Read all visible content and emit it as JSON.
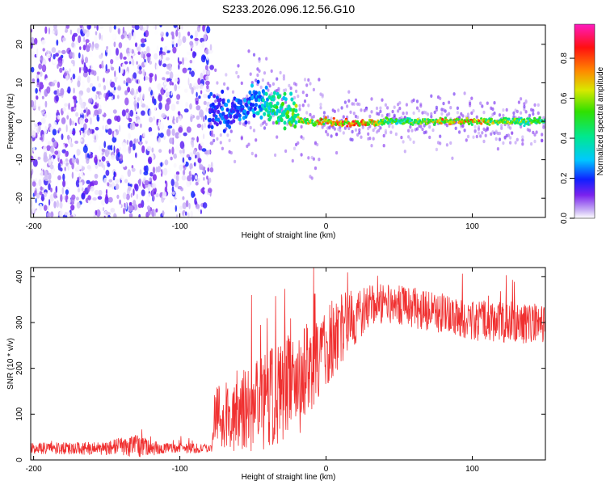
{
  "figure": {
    "title": "S233.2026.096.12.56.G10"
  },
  "chart_data": [
    {
      "type": "heatmap",
      "xlabel": "Height of straight line (km)",
      "ylabel": "Frequency (Hz)",
      "xlim": [
        -202,
        150
      ],
      "ylim": [
        -25,
        25
      ],
      "xticks": [
        -200,
        -100,
        0,
        100
      ],
      "yticks": [
        -20,
        -10,
        0,
        10,
        20
      ],
      "colorbar": {
        "label": "Normalized spectral amplitude",
        "range": [
          0,
          0.97
        ],
        "ticks": [
          0.0,
          0.2,
          0.4,
          0.6,
          0.8
        ],
        "tick_labels": [
          "0.0",
          "0.2",
          "0.4",
          "0.6",
          "0.8"
        ]
      },
      "ridge": [
        {
          "x": -80,
          "y": 3,
          "amp": 0.22
        },
        {
          "x": -70,
          "y": 2,
          "amp": 0.25
        },
        {
          "x": -60,
          "y": 2.5,
          "amp": 0.25
        },
        {
          "x": -50,
          "y": 4,
          "amp": 0.3
        },
        {
          "x": -45,
          "y": 5,
          "amp": 0.35
        },
        {
          "x": -38,
          "y": 4,
          "amp": 0.45
        },
        {
          "x": -30,
          "y": 3,
          "amp": 0.5
        },
        {
          "x": -22,
          "y": 1.5,
          "amp": 0.55
        },
        {
          "x": -15,
          "y": 0,
          "amp": 0.7
        },
        {
          "x": -8,
          "y": -0.5,
          "amp": 0.75
        },
        {
          "x": 0,
          "y": 0,
          "amp": 0.8
        },
        {
          "x": 10,
          "y": -0.5,
          "amp": 0.85
        },
        {
          "x": 25,
          "y": -0.5,
          "amp": 0.8
        },
        {
          "x": 50,
          "y": 0,
          "amp": 0.5
        },
        {
          "x": 75,
          "y": 0,
          "amp": 0.75
        },
        {
          "x": 100,
          "y": 0,
          "amp": 0.8
        },
        {
          "x": 125,
          "y": 0,
          "amp": 0.6
        },
        {
          "x": 150,
          "y": 0,
          "amp": 0.55
        }
      ]
    },
    {
      "type": "line",
      "xlabel": "Height of straight line (km)",
      "ylabel": "SNR (10 * v/v)",
      "xlim": [
        -202,
        150
      ],
      "ylim": [
        0,
        420
      ],
      "xticks": [
        -200,
        -100,
        0,
        100
      ],
      "yticks": [
        0,
        100,
        200,
        300,
        400
      ],
      "series": [
        {
          "color": "#f03030",
          "envelope": [
            {
              "x": -202,
              "mean": 25,
              "spread": 12
            },
            {
              "x": -150,
              "mean": 25,
              "spread": 14
            },
            {
              "x": -140,
              "mean": 30,
              "spread": 20
            },
            {
              "x": -130,
              "mean": 30,
              "spread": 25
            },
            {
              "x": -110,
              "mean": 25,
              "spread": 12
            },
            {
              "x": -78,
              "mean": 25,
              "spread": 10
            },
            {
              "x": -76,
              "mean": 90,
              "spread": 70
            },
            {
              "x": -60,
              "mean": 110,
              "spread": 90
            },
            {
              "x": -40,
              "mean": 130,
              "spread": 110
            },
            {
              "x": -20,
              "mean": 170,
              "spread": 120
            },
            {
              "x": -10,
              "mean": 200,
              "spread": 110
            },
            {
              "x": 0,
              "mean": 250,
              "spread": 90
            },
            {
              "x": 15,
              "mean": 300,
              "spread": 70
            },
            {
              "x": 30,
              "mean": 340,
              "spread": 45
            },
            {
              "x": 50,
              "mean": 340,
              "spread": 45
            },
            {
              "x": 70,
              "mean": 325,
              "spread": 45
            },
            {
              "x": 100,
              "mean": 305,
              "spread": 45
            },
            {
              "x": 130,
              "mean": 300,
              "spread": 45
            },
            {
              "x": 150,
              "mean": 295,
              "spread": 45
            }
          ]
        }
      ]
    }
  ]
}
